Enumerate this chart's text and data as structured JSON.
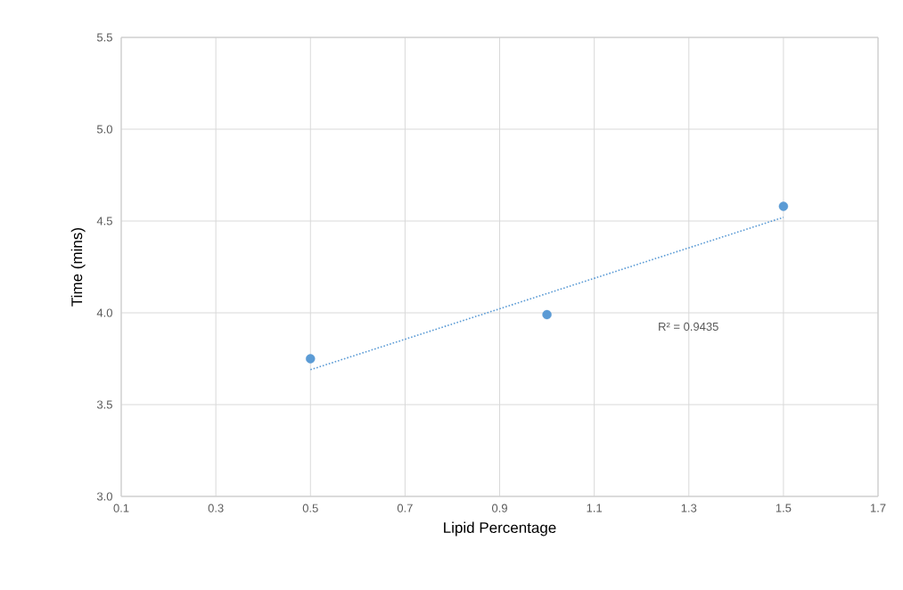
{
  "chart_data": {
    "type": "scatter",
    "xlabel": "Lipid Percentage",
    "ylabel": "Time (mins)",
    "series": [
      {
        "color": "#5b9bd5",
        "x": [
          0.5,
          1.0,
          1.5
        ],
        "values": [
          3.75,
          3.99,
          4.58
        ],
        "marker": "circle"
      },
      {
        "type": "line",
        "color": "#5b9bd5",
        "x": [
          0.5,
          1.5
        ],
        "values": [
          3.69,
          4.52
        ],
        "marker": "none",
        "line_style": "dotted"
      }
    ],
    "annotations": [
      "R² = 0.9435"
    ],
    "xlim": [
      0.1,
      1.7
    ],
    "xticks": [
      {
        "value": 0.1,
        "label": "0.1"
      },
      {
        "value": 0.3,
        "label": "0.3"
      },
      {
        "value": 0.5,
        "label": "0.5"
      },
      {
        "value": 0.7,
        "label": "0.7"
      },
      {
        "value": 0.9,
        "label": "0.9"
      },
      {
        "value": 1.1,
        "label": "1.1"
      },
      {
        "value": 1.3,
        "label": "1.3"
      },
      {
        "value": 1.5,
        "label": "1.5"
      },
      {
        "value": 1.7,
        "label": "1.7"
      }
    ],
    "ylim": [
      3.0,
      5.5
    ],
    "yticks": [
      {
        "value": 3.0,
        "label": "3.0"
      },
      {
        "value": 3.5,
        "label": "3.5"
      },
      {
        "value": 4.0,
        "label": "4.0"
      },
      {
        "value": 4.5,
        "label": "4.5"
      },
      {
        "value": 5.0,
        "label": "5.0"
      },
      {
        "value": 5.5,
        "label": "5.5"
      }
    ],
    "grid": true
  }
}
